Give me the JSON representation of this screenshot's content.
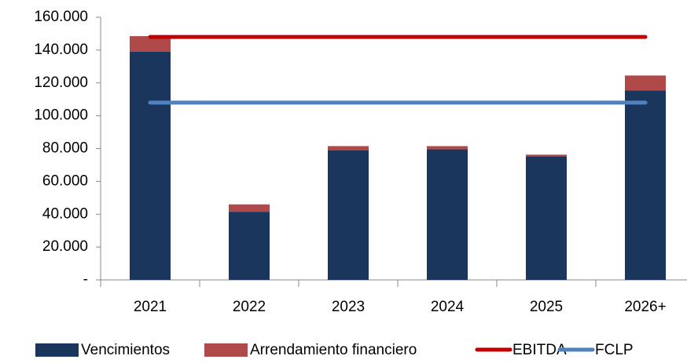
{
  "chart_data": {
    "type": "bar",
    "categories": [
      "2021",
      "2022",
      "2023",
      "2024",
      "2025",
      "2026+"
    ],
    "series": [
      {
        "name": "Vencimientos",
        "type": "bar",
        "color": "#1b365d",
        "values": [
          139000,
          41500,
          79000,
          79500,
          75300,
          115500
        ]
      },
      {
        "name": "Arrendamiento financiero",
        "type": "bar",
        "color": "#b04a4a",
        "values": [
          9500,
          4500,
          2500,
          2000,
          1000,
          9000
        ]
      },
      {
        "name": "EBITDA",
        "type": "line",
        "color": "#c00000",
        "values": [
          148000,
          148000,
          148000,
          148000,
          148000,
          148000
        ]
      },
      {
        "name": "FCLP",
        "type": "line",
        "color": "#4f81bd",
        "values": [
          108000,
          108000,
          108000,
          108000,
          108000,
          108000
        ]
      }
    ],
    "stacked": true,
    "ylim": [
      0,
      160000
    ],
    "yticks": [
      {
        "value": 0,
        "label": "-"
      },
      {
        "value": 20000,
        "label": "20.000"
      },
      {
        "value": 40000,
        "label": "40.000"
      },
      {
        "value": 60000,
        "label": "60.000"
      },
      {
        "value": 80000,
        "label": "80.000"
      },
      {
        "value": 100000,
        "label": "100.000"
      },
      {
        "value": 120000,
        "label": "120.000"
      },
      {
        "value": 140000,
        "label": "140.000"
      },
      {
        "value": 160000,
        "label": "160.000"
      }
    ],
    "grid": false,
    "legend": "bottom"
  }
}
